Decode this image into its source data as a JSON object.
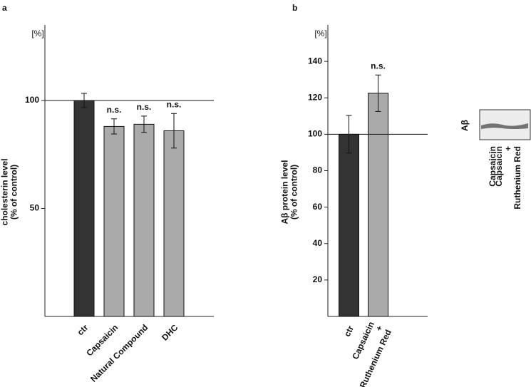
{
  "chart_data": [
    {
      "type": "bar",
      "panel": "a",
      "unit_label": "[%]",
      "ylabel": "cholesterin level\n(% of control)",
      "categories": [
        "ctr",
        "Capsaicin",
        "Natural Compound",
        "DHC"
      ],
      "values": [
        100,
        88,
        89,
        86
      ],
      "errors": [
        3.3,
        3.5,
        3.8,
        8
      ],
      "colors": [
        "#333333",
        "#aaaaaa",
        "#aaaaaa",
        "#aaaaaa"
      ],
      "annotations": [
        null,
        "n.s.",
        "n.s.",
        "n.s."
      ],
      "reference_line": 100,
      "ylim": [
        0,
        135
      ],
      "yticks": [
        50,
        100
      ]
    },
    {
      "type": "bar",
      "panel": "b",
      "unit_label": "[%]",
      "ylabel": "Aβ protein level\n(% of control)",
      "categories": [
        "ctr",
        "Capsaicin\n+\nRuthenium Red"
      ],
      "values": [
        100,
        122.5
      ],
      "errors": [
        10.3,
        10
      ],
      "colors": [
        "#333333",
        "#aaaaaa"
      ],
      "annotations": [
        null,
        "n.s."
      ],
      "reference_line": 100,
      "ylim": [
        0,
        160
      ],
      "yticks": [
        20,
        40,
        60,
        80,
        100,
        120,
        140
      ]
    }
  ],
  "blot": {
    "label": "Aβ",
    "lanes": [
      "Capsaicin",
      "Capsaicin\n+\nRuthenium Red"
    ]
  }
}
